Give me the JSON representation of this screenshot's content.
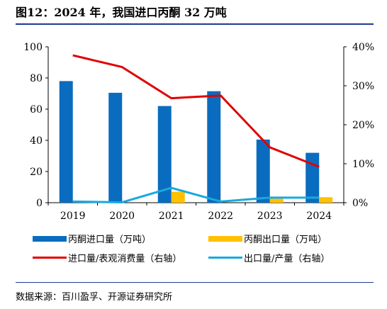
{
  "title": "图12：2024 年，我国进口丙酮 32 万吨",
  "source": "数据来源：百川盈孚、开源证券研究所",
  "chart_data": {
    "type": "bar",
    "categories": [
      "2019",
      "2020",
      "2021",
      "2022",
      "2023",
      "2024"
    ],
    "series": [
      {
        "name": "丙酮进口量（万吨）",
        "kind": "bar",
        "axis": "left",
        "color": "#0a6cbf",
        "values": [
          78,
          70.5,
          62,
          71.5,
          40.5,
          32
        ]
      },
      {
        "name": "丙酮出口量（万吨）",
        "kind": "bar",
        "axis": "left",
        "color": "#ffc000",
        "values": [
          0,
          0,
          7,
          0,
          2.5,
          3.5
        ]
      },
      {
        "name": "进口量/表观消费量（右轴）",
        "kind": "line",
        "axis": "right",
        "color": "#e00000",
        "values": [
          37.8,
          34.8,
          26.8,
          27.5,
          14.2,
          9.2
        ]
      },
      {
        "name": "出口量/产量（右轴）",
        "kind": "line",
        "axis": "right",
        "color": "#17a9e0",
        "values": [
          0.3,
          0.1,
          3.8,
          0.3,
          1.3,
          1.3
        ]
      }
    ],
    "ylim_left": [
      0,
      100
    ],
    "yticks_left": [
      "0",
      "20",
      "40",
      "60",
      "80",
      "100"
    ],
    "ylim_right": [
      0,
      40
    ],
    "yticks_right": [
      "0%",
      "10%",
      "20%",
      "30%",
      "40%"
    ],
    "grid": false
  }
}
